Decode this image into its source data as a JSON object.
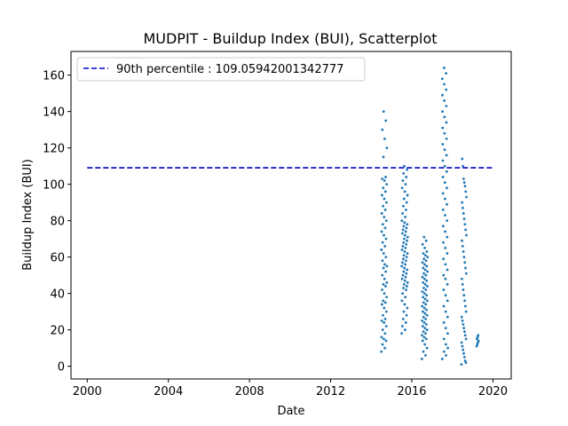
{
  "chart_data": {
    "type": "scatter",
    "title": "MUDPIT - Buildup Index (BUI), Scatterplot",
    "xlabel": "Date",
    "ylabel": "Buildup Index (BUI)",
    "xlim": [
      1999.2,
      2020.9
    ],
    "ylim": [
      -7,
      173
    ],
    "x_ticks": [
      2000,
      2004,
      2008,
      2012,
      2016,
      2020
    ],
    "y_ticks": [
      0,
      20,
      40,
      60,
      80,
      100,
      120,
      140,
      160
    ],
    "grid": false,
    "legend_position": "upper-left",
    "reference_line": {
      "label": "90th percentile : 109.05942001342777",
      "value": 109.05942001342777,
      "x_range": [
        2000,
        2020
      ],
      "style": "dashed",
      "color": "#0000cc"
    },
    "series": [
      {
        "color": "#1f77b4",
        "seasons": [
          {
            "x_start": 2014.5,
            "x_end": 2014.78,
            "y": [
              8,
              10,
              12,
              14,
              15,
              16,
              18,
              20,
              22,
              24,
              25,
              26,
              28,
              30,
              32,
              34,
              35,
              36,
              38,
              40,
              42,
              44,
              45,
              46,
              48,
              50,
              52,
              54,
              55,
              56,
              58,
              60,
              62,
              64,
              66,
              68,
              70,
              72,
              74,
              76,
              78,
              80,
              82,
              84,
              86,
              88,
              90,
              92,
              94,
              96,
              98,
              100,
              102,
              103,
              104,
              115,
              120,
              125,
              130,
              135,
              140
            ]
          },
          {
            "x_start": 2015.5,
            "x_end": 2015.8,
            "y": [
              18,
              20,
              22,
              24,
              26,
              28,
              30,
              32,
              34,
              36,
              38,
              40,
              42,
              43,
              44,
              45,
              46,
              47,
              48,
              49,
              50,
              51,
              52,
              53,
              54,
              55,
              56,
              57,
              58,
              59,
              60,
              61,
              62,
              63,
              64,
              65,
              66,
              67,
              68,
              69,
              70,
              71,
              72,
              73,
              74,
              75,
              76,
              77,
              78,
              79,
              80,
              82,
              84,
              86,
              88,
              90,
              92,
              94,
              96,
              98,
              100,
              102,
              104,
              106,
              108,
              110
            ]
          },
          {
            "x_start": 2016.5,
            "x_end": 2016.78,
            "y": [
              4,
              6,
              8,
              10,
              12,
              14,
              15,
              16,
              17,
              18,
              19,
              20,
              21,
              22,
              23,
              24,
              25,
              26,
              27,
              28,
              29,
              30,
              31,
              32,
              33,
              34,
              35,
              36,
              37,
              38,
              39,
              40,
              41,
              42,
              43,
              44,
              45,
              46,
              47,
              48,
              49,
              50,
              51,
              52,
              53,
              54,
              55,
              56,
              57,
              58,
              59,
              60,
              61,
              62,
              63,
              65,
              67,
              69,
              71
            ]
          },
          {
            "x_start": 2017.5,
            "x_end": 2017.78,
            "y": [
              4,
              6,
              8,
              10,
              12,
              15,
              18,
              21,
              24,
              27,
              30,
              33,
              36,
              39,
              42,
              45,
              48,
              50,
              53,
              56,
              59,
              62,
              65,
              68,
              71,
              74,
              77,
              80,
              83,
              86,
              89,
              92,
              95,
              98,
              101,
              104,
              107,
              110,
              113,
              116,
              119,
              122,
              125,
              128,
              131,
              134,
              137,
              140,
              143,
              146,
              149,
              152,
              155,
              158,
              161,
              164
            ]
          },
          {
            "x_start": 2018.45,
            "x_end": 2018.7,
            "y": [
              1,
              2,
              3,
              5,
              7,
              9,
              11,
              13,
              15,
              17,
              19,
              21,
              23,
              25,
              27,
              30,
              33,
              36,
              39,
              42,
              45,
              48,
              51,
              54,
              57,
              60,
              63,
              66,
              69,
              72,
              75,
              78,
              81,
              84,
              87,
              90,
              93,
              96,
              99,
              101,
              103,
              110,
              114
            ]
          },
          {
            "x_start": 2019.2,
            "x_end": 2019.3,
            "y": [
              11,
              12,
              13,
              14,
              15,
              16,
              17
            ]
          }
        ]
      }
    ]
  }
}
